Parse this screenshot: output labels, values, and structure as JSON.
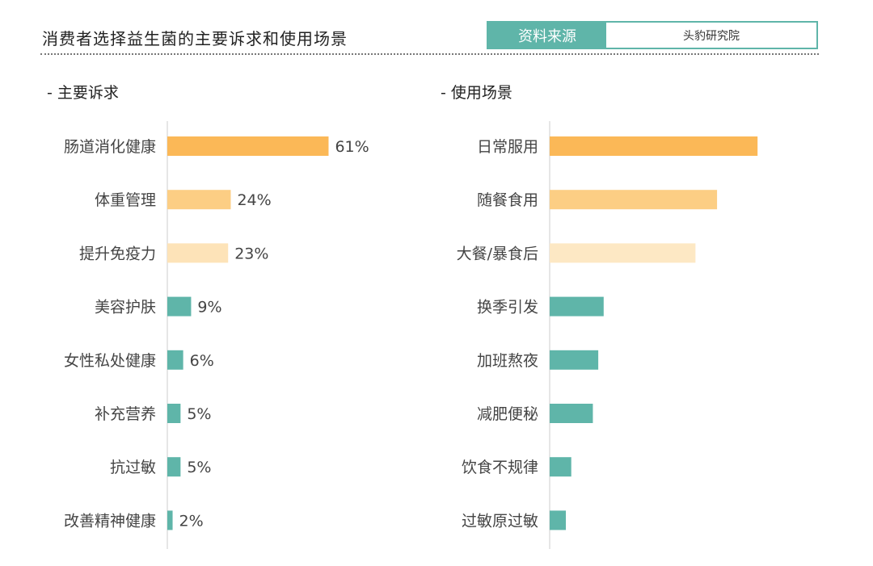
{
  "header": {
    "title": "消费者选择益生菌的主要诉求和使用场景",
    "source_label": "资料来源",
    "source_value": "头豹研究院"
  },
  "colors": {
    "orange": "#fbb857",
    "orange_light": "#fcce84",
    "orange_pale": "#fde8c4",
    "teal": "#5fb5a9",
    "axis": "#dddddd"
  },
  "chart_data": [
    {
      "type": "bar",
      "orientation": "horizontal",
      "title": "- 主要诉求",
      "categories": [
        "肠道消化健康",
        "体重管理",
        "提升免疫力",
        "美容护肤",
        "女性私处健康",
        "补充营养",
        "抗过敏",
        "改善精神健康"
      ],
      "values": [
        61,
        24,
        23,
        9,
        6,
        5,
        5,
        2
      ],
      "value_labels": [
        "61%",
        "24%",
        "23%",
        "9%",
        "6%",
        "5%",
        "5%",
        "2%"
      ],
      "bar_colors": [
        "#fbb857",
        "#fcce84",
        "#fde3b8",
        "#5fb5a9",
        "#5fb5a9",
        "#5fb5a9",
        "#5fb5a9",
        "#5fb5a9"
      ],
      "xlim": [
        0,
        100
      ],
      "grid": false
    },
    {
      "type": "bar",
      "orientation": "horizontal",
      "title": "- 使用场景",
      "categories": [
        "日常服用",
        "随餐食用",
        "大餐/暴食后",
        "换季引发",
        "加班熬夜",
        "减肥便秘",
        "饮食不规律",
        "过敏原过敏"
      ],
      "values": [
        77,
        62,
        54,
        20,
        18,
        16,
        8,
        6
      ],
      "value_labels": [],
      "bar_colors": [
        "#fbb857",
        "#fcce84",
        "#fde8c4",
        "#5fb5a9",
        "#5fb5a9",
        "#5fb5a9",
        "#5fb5a9",
        "#5fb5a9"
      ],
      "xlim": [
        0,
        100
      ],
      "grid": false
    }
  ]
}
